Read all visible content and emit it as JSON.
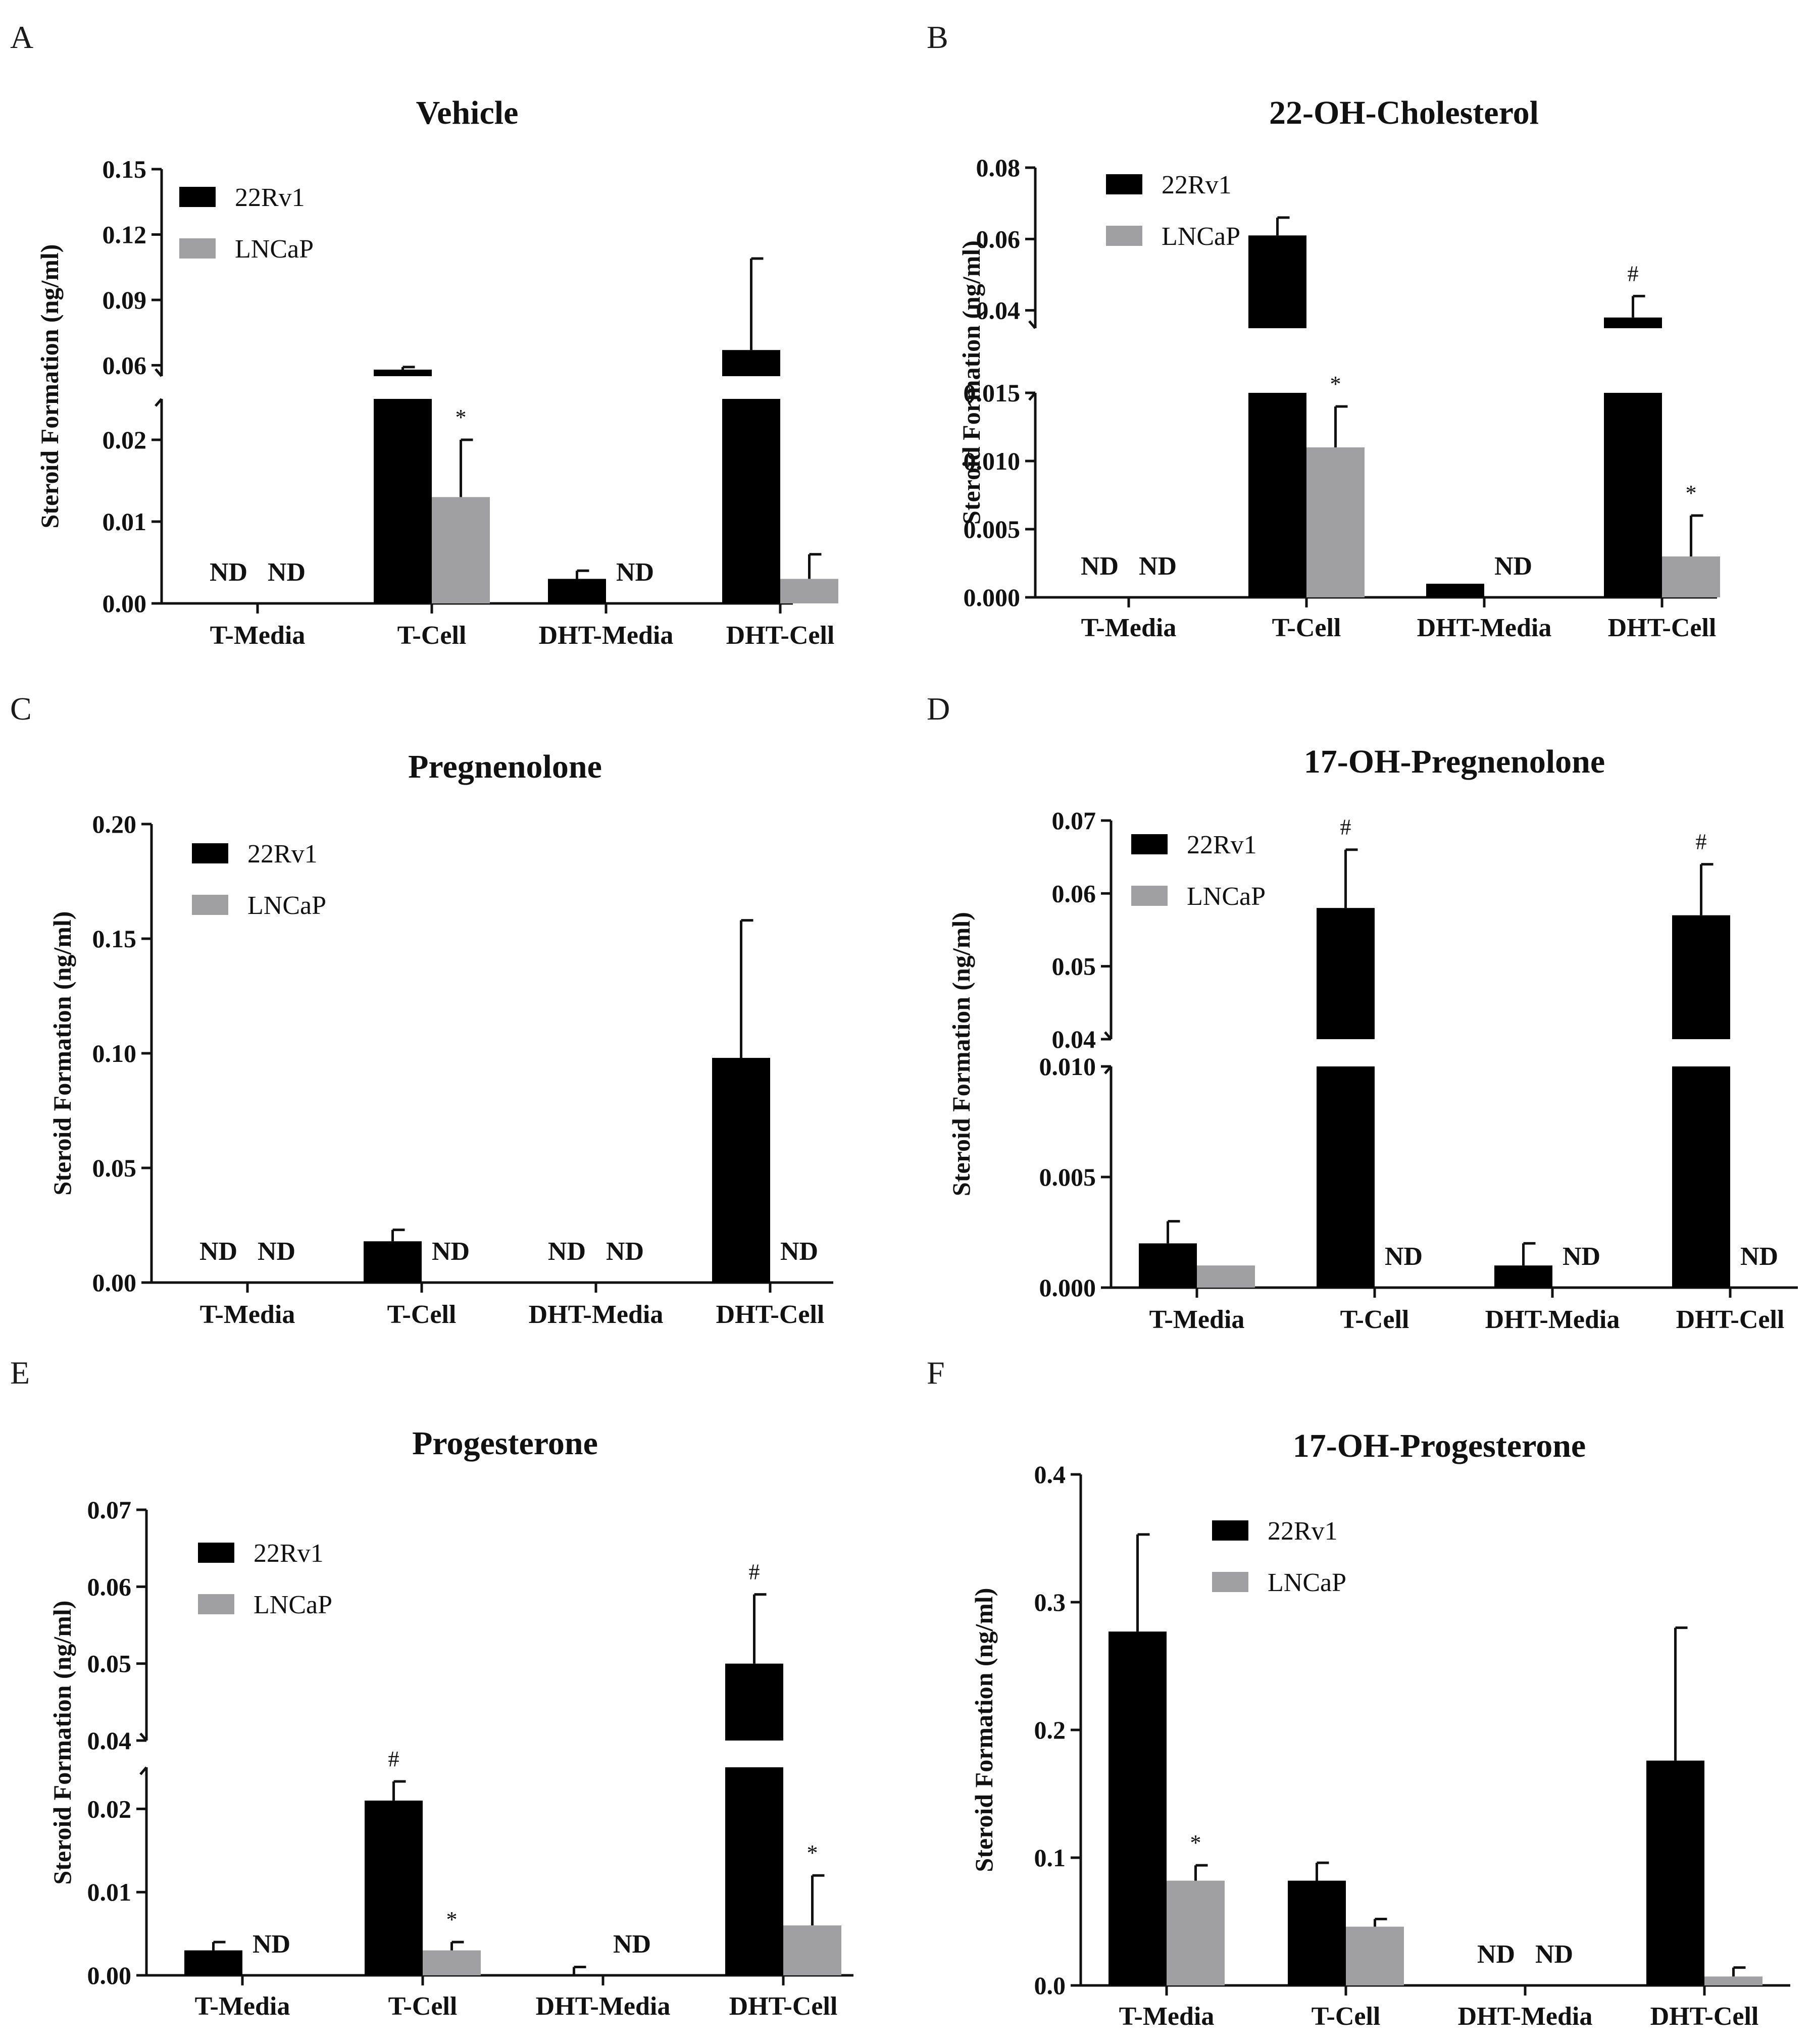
{
  "colors": {
    "s22Rv1": "#000000",
    "LNCaP": "#a0a0a2",
    "axis": "#111111"
  },
  "chart_data": [
    {
      "panel": "A",
      "type": "bar",
      "title": "Vehicle",
      "ylabel": "Steroid  Formation (ng/ml)",
      "categories": [
        "T-Media",
        "T-Cell",
        "DHT-Media",
        "DHT-Cell"
      ],
      "series": [
        {
          "name": "22Rv1",
          "values": [
            0,
            0.058,
            0.003,
            0.067
          ],
          "errors": [
            0,
            0.0012,
            0.001,
            0.042
          ],
          "labels": [
            "ND",
            "",
            "",
            ""
          ],
          "marks": [
            "",
            "",
            "",
            ""
          ]
        },
        {
          "name": "LNCaP",
          "values": [
            0,
            0.013,
            0,
            0.003
          ],
          "errors": [
            0,
            0.007,
            0,
            0.003
          ],
          "labels": [
            "ND",
            "",
            "ND",
            ""
          ],
          "marks": [
            "",
            "*",
            "",
            ""
          ]
        }
      ],
      "axis_break": true,
      "lower": {
        "range": [
          0,
          0.025
        ],
        "ticks": [
          "0.00",
          "0.01",
          "0.02"
        ]
      },
      "upper": {
        "range": [
          0.055,
          0.15
        ],
        "ticks": [
          "0.06",
          "0.09",
          "0.12",
          "0.15"
        ]
      }
    },
    {
      "panel": "B",
      "type": "bar",
      "title": "22-OH-Cholesterol",
      "ylabel": "Steroid  Formation (ng/ml)",
      "categories": [
        "T-Media",
        "T-Cell",
        "DHT-Media",
        "DHT-Cell"
      ],
      "series": [
        {
          "name": "22Rv1",
          "values": [
            0,
            0.061,
            0.001,
            0.038
          ],
          "errors": [
            0,
            0.005,
            0,
            0.006
          ],
          "labels": [
            "ND",
            "",
            "",
            ""
          ],
          "marks": [
            "",
            "",
            "",
            "#"
          ]
        },
        {
          "name": "LNCaP",
          "values": [
            0,
            0.011,
            0,
            0.003
          ],
          "errors": [
            0,
            0.003,
            0,
            0.003
          ],
          "labels": [
            "ND",
            "",
            "ND",
            ""
          ],
          "marks": [
            "",
            "*",
            "",
            "*"
          ]
        }
      ],
      "axis_break": true,
      "lower": {
        "range": [
          0,
          0.015
        ],
        "ticks": [
          "0.000",
          "0.005",
          "0.010",
          "0.015"
        ]
      },
      "upper": {
        "range": [
          0.035,
          0.08
        ],
        "ticks": [
          "0.04",
          "0.06",
          "0.08"
        ]
      }
    },
    {
      "panel": "C",
      "type": "bar",
      "title": "Pregnenolone",
      "ylabel": "Steroid  Formation (ng/ml)",
      "categories": [
        "T-Media",
        "T-Cell",
        "DHT-Media",
        "DHT-Cell"
      ],
      "series": [
        {
          "name": "22Rv1",
          "values": [
            0,
            0.018,
            0,
            0.098
          ],
          "errors": [
            0,
            0.005,
            0,
            0.06
          ],
          "labels": [
            "ND",
            "",
            "ND",
            ""
          ],
          "marks": [
            "",
            "",
            "",
            ""
          ]
        },
        {
          "name": "LNCaP",
          "values": [
            0,
            0,
            0,
            0
          ],
          "errors": [
            0,
            0,
            0,
            0
          ],
          "labels": [
            "ND",
            "ND",
            "ND",
            "ND"
          ],
          "marks": [
            "",
            "",
            "",
            ""
          ]
        }
      ],
      "axis_break": false,
      "single": {
        "range": [
          0,
          0.2
        ],
        "ticks": [
          "0.00",
          "0.05",
          "0.10",
          "0.15",
          "0.20"
        ]
      }
    },
    {
      "panel": "D",
      "type": "bar",
      "title": "17-OH-Pregnenolone",
      "ylabel": "Steroid  Formation (ng/ml)",
      "categories": [
        "T-Media",
        "T-Cell",
        "DHT-Media",
        "DHT-Cell"
      ],
      "series": [
        {
          "name": "22Rv1",
          "values": [
            0.002,
            0.058,
            0.001,
            0.057
          ],
          "errors": [
            0.001,
            0.008,
            0.001,
            0.007
          ],
          "labels": [
            "",
            "",
            "",
            ""
          ],
          "marks": [
            "",
            "#",
            "",
            "#"
          ]
        },
        {
          "name": "LNCaP",
          "values": [
            0.001,
            0,
            0,
            0
          ],
          "errors": [
            0,
            0,
            0,
            0
          ],
          "labels": [
            "",
            "ND",
            "ND",
            "ND"
          ],
          "marks": [
            "",
            "",
            "",
            ""
          ]
        }
      ],
      "axis_break": true,
      "lower": {
        "range": [
          0,
          0.01
        ],
        "ticks": [
          "0.000",
          "0.005",
          "0.010"
        ]
      },
      "upper": {
        "range": [
          0.04,
          0.07
        ],
        "ticks": [
          "0.04",
          "0.05",
          "0.06",
          "0.07"
        ]
      }
    },
    {
      "panel": "E",
      "type": "bar",
      "title": "Progesterone",
      "ylabel": "Steroid  Formation (ng/ml)",
      "categories": [
        "T-Media",
        "T-Cell",
        "DHT-Media",
        "DHT-Cell"
      ],
      "series": [
        {
          "name": "22Rv1",
          "values": [
            0.003,
            0.021,
            0,
            0.05
          ],
          "errors": [
            0.001,
            0.0023,
            0.001,
            0.009
          ],
          "labels": [
            "",
            "",
            "",
            ""
          ],
          "marks": [
            "",
            "#",
            "",
            "#"
          ]
        },
        {
          "name": "LNCaP",
          "values": [
            0,
            0.003,
            0,
            0.006
          ],
          "errors": [
            0,
            0.001,
            0,
            0.006
          ],
          "labels": [
            "ND",
            "",
            "ND",
            ""
          ],
          "marks": [
            "",
            "*",
            "",
            "*"
          ]
        }
      ],
      "axis_break": true,
      "lower": {
        "range": [
          0,
          0.025
        ],
        "ticks": [
          "0.00",
          "0.01",
          "0.02"
        ]
      },
      "upper": {
        "range": [
          0.04,
          0.07
        ],
        "ticks": [
          "0.04",
          "0.05",
          "0.06",
          "0.07"
        ]
      }
    },
    {
      "panel": "F",
      "type": "bar",
      "title": "17-OH-Progesterone",
      "ylabel": "Steroid  Formation (ng/ml)",
      "categories": [
        "T-Media",
        "T-Cell",
        "DHT-Media",
        "DHT-Cell"
      ],
      "series": [
        {
          "name": "22Rv1",
          "values": [
            0.277,
            0.082,
            0,
            0.176
          ],
          "errors": [
            0.076,
            0.014,
            0,
            0.104
          ],
          "labels": [
            "",
            "",
            "ND",
            ""
          ],
          "marks": [
            "",
            "",
            "",
            ""
          ]
        },
        {
          "name": "LNCaP",
          "values": [
            0.082,
            0.046,
            0,
            0.007
          ],
          "errors": [
            0.012,
            0.006,
            0,
            0.007
          ],
          "labels": [
            "",
            "",
            "ND",
            ""
          ],
          "marks": [
            "*",
            "",
            "",
            ""
          ]
        }
      ],
      "axis_break": false,
      "single": {
        "range": [
          0,
          0.4
        ],
        "ticks": [
          "0.0",
          "0.1",
          "0.2",
          "0.3",
          "0.4"
        ]
      }
    }
  ]
}
